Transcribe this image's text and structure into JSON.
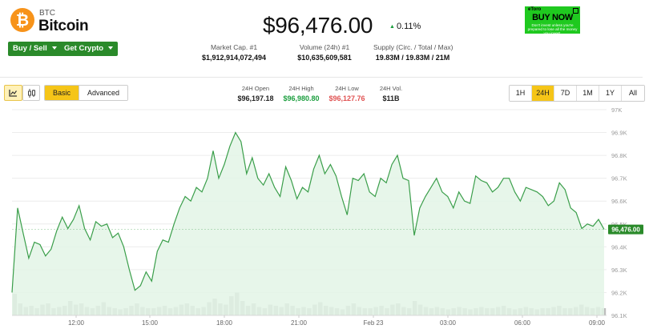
{
  "coin": {
    "symbol": "BTC",
    "name": "Bitcoin",
    "logo_glyph": "₿",
    "logo_color": "#f7931a"
  },
  "actions": {
    "buy_sell": "Buy / Sell",
    "get_crypto": "Get Crypto"
  },
  "price": {
    "value": "$96,476.00",
    "change": "0.11%",
    "direction": "up"
  },
  "stats": [
    {
      "label": "Market Cap. #1",
      "value": "$1,912,914,072,494"
    },
    {
      "label": "Volume (24h) #1",
      "value": "$10,635,609,581"
    },
    {
      "label": "Supply (Circ. / Total / Max)",
      "value": "19.83M / 19.83M / 21M"
    }
  ],
  "ad": {
    "brand": "eToro",
    "cta": "BUY NOW",
    "disclaimer": "Don't invest unless you're prepared to lose all the money you invest."
  },
  "toolbar": {
    "chart_types": [
      "area-chart-icon",
      "candlestick-icon"
    ],
    "active_chart_type": "area-chart-icon",
    "modes": [
      "Basic",
      "Advanced"
    ],
    "active_mode": "Basic"
  },
  "ohlc": [
    {
      "label": "24H Open",
      "value": "$96,197.18",
      "color": "#222222"
    },
    {
      "label": "24H High",
      "value": "$96,980.80",
      "color": "#1b9e3e"
    },
    {
      "label": "24H Low",
      "value": "$96,127.76",
      "color": "#e05252"
    },
    {
      "label": "24H Vol.",
      "value": "$11B",
      "color": "#222222"
    }
  ],
  "ranges": [
    "1H",
    "24H",
    "7D",
    "1M",
    "1Y",
    "All"
  ],
  "active_range": "24H",
  "chart_data": {
    "type": "area",
    "ylim": [
      96100,
      97000
    ],
    "y_ticks": [
      "96.1K",
      "96.2K",
      "96.3K",
      "96.4K",
      "96.5K",
      "96.6K",
      "96.7K",
      "96.8K",
      "96.9K",
      "97K"
    ],
    "x_ticks": [
      "12:00",
      "15:00",
      "18:00",
      "21:00",
      "Feb 23",
      "03:00",
      "06:00",
      "09:00"
    ],
    "last_price_label": "96,476.00",
    "line_color": "#3a9e4a",
    "fill_color": "#e3f4e6",
    "volume_color": "#bdbdbd",
    "series": [
      {
        "values": [
          96200,
          96570,
          96460,
          96350,
          96420,
          96410,
          96360,
          96390,
          96470,
          96530,
          96480,
          96520,
          96580,
          96480,
          96430,
          96510,
          96490,
          96500,
          96440,
          96460,
          96400,
          96300,
          96210,
          96230,
          96290,
          96250,
          96380,
          96430,
          96420,
          96500,
          96570,
          96620,
          96600,
          96660,
          96640,
          96700,
          96820,
          96700,
          96760,
          96840,
          96900,
          96860,
          96720,
          96790,
          96700,
          96670,
          96720,
          96660,
          96620,
          96750,
          96690,
          96610,
          96660,
          96640,
          96740,
          96800,
          96720,
          96760,
          96710,
          96620,
          96540,
          96700,
          96690,
          96720,
          96640,
          96620,
          96700,
          96680,
          96760,
          96800,
          96700,
          96690,
          96450,
          96570,
          96620,
          96660,
          96700,
          96640,
          96620,
          96570,
          96640,
          96600,
          96590,
          96710,
          96690,
          96680,
          96640,
          96660,
          96700,
          96700,
          96640,
          96600,
          96660,
          96650,
          96640,
          96620,
          96580,
          96600,
          96680,
          96650,
          96570,
          96550,
          96480,
          96500,
          96490,
          96520,
          96476
        ]
      }
    ],
    "volume": [
      0.9,
      0.5,
      0.35,
      0.4,
      0.3,
      0.45,
      0.5,
      0.3,
      0.35,
      0.4,
      0.6,
      0.45,
      0.5,
      0.35,
      0.3,
      0.4,
      0.55,
      0.35,
      0.3,
      0.25,
      0.3,
      0.4,
      0.5,
      0.35,
      0.3,
      0.3,
      0.35,
      0.4,
      0.3,
      0.35,
      0.45,
      0.5,
      0.4,
      0.3,
      0.35,
      0.55,
      0.7,
      0.5,
      0.45,
      0.8,
      0.95,
      0.6,
      0.4,
      0.5,
      0.35,
      0.3,
      0.45,
      0.4,
      0.35,
      0.5,
      0.4,
      0.3,
      0.35,
      0.3,
      0.45,
      0.55,
      0.4,
      0.35,
      0.3,
      0.25,
      0.4,
      0.5,
      0.35,
      0.3,
      0.3,
      0.35,
      0.4,
      0.3,
      0.45,
      0.5,
      0.35,
      0.3,
      0.6,
      0.45,
      0.35,
      0.3,
      0.35,
      0.3,
      0.25,
      0.3,
      0.35,
      0.3,
      0.25,
      0.3,
      0.35,
      0.3,
      0.3,
      0.35,
      0.4,
      0.3,
      0.25,
      0.3,
      0.35,
      0.3,
      0.25,
      0.3,
      0.3,
      0.35,
      0.4,
      0.3,
      0.3,
      0.35,
      0.45,
      0.35,
      0.3,
      0.35,
      0.3
    ]
  }
}
